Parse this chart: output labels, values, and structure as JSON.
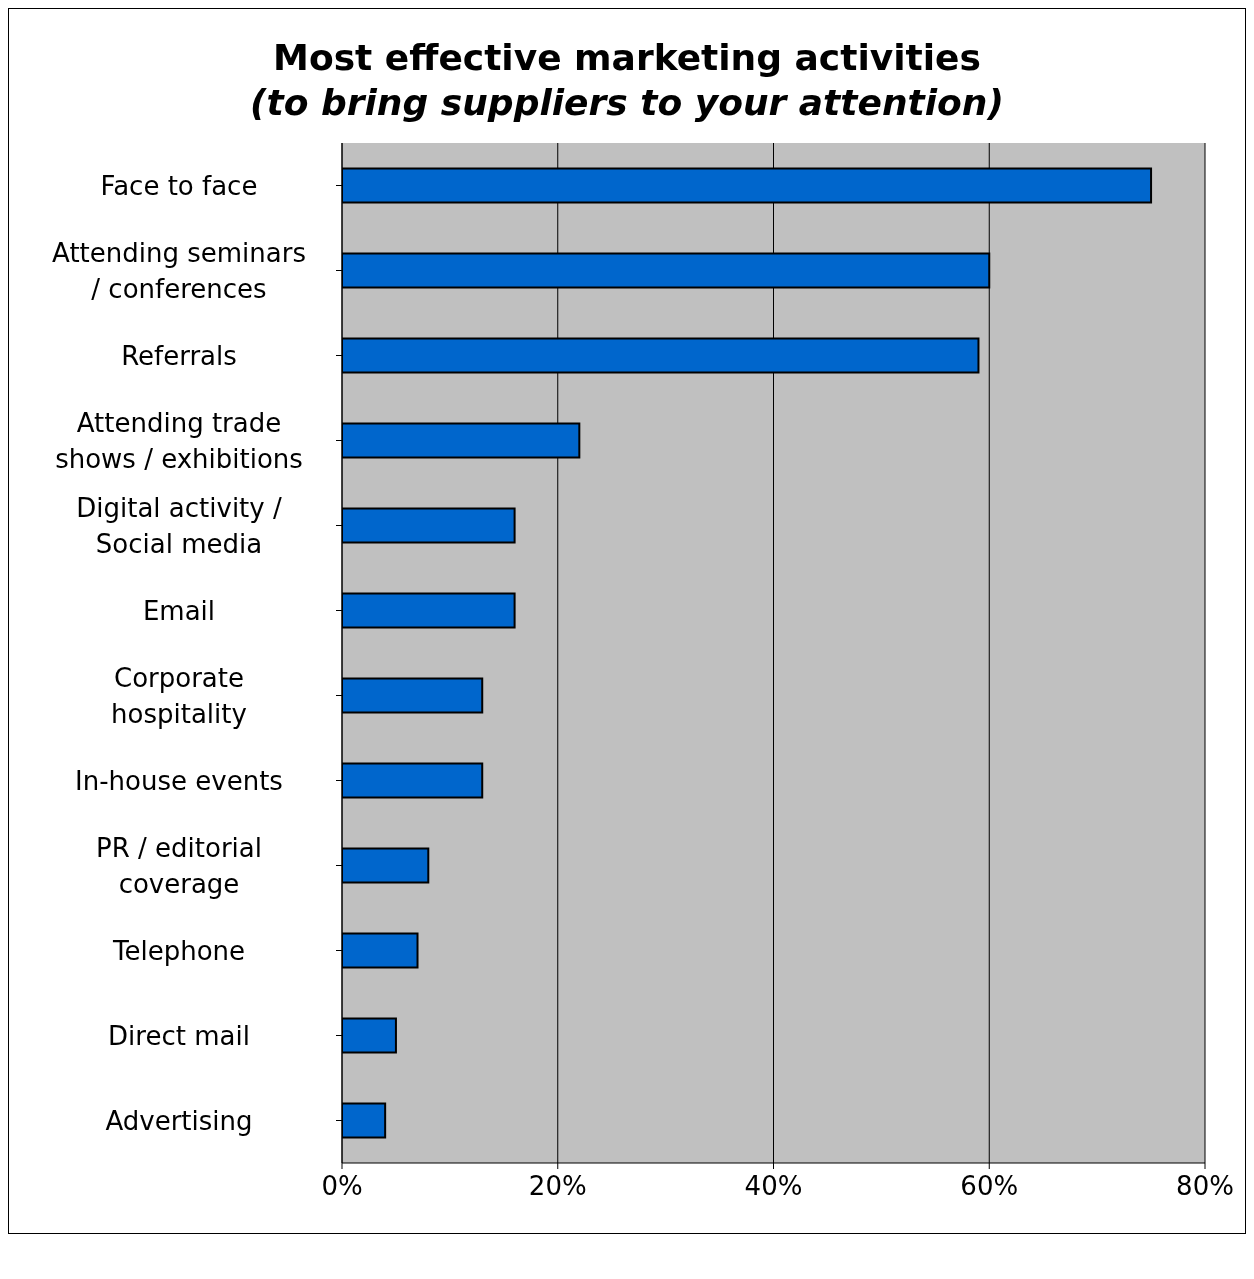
{
  "chart_data": {
    "type": "bar",
    "orientation": "horizontal",
    "title": "Most effective marketing activities",
    "subtitle": "(to bring suppliers to your attention)",
    "categories": [
      "Face to face",
      "Attending seminars / conferences",
      "Referrals",
      "Attending trade shows / exhibitions",
      "Digital activity / Social media",
      "Email",
      "Corporate hospitality",
      "In-house events",
      "PR / editorial coverage",
      "Telephone",
      "Direct mail",
      "Advertising"
    ],
    "values": [
      75,
      60,
      59,
      22,
      16,
      16,
      13,
      13,
      8,
      7,
      5,
      4
    ],
    "color": "#0066cc",
    "xlim": [
      0,
      80
    ],
    "xticks": [
      {
        "value": 0,
        "label": "0%"
      },
      {
        "value": 20,
        "label": "20%"
      },
      {
        "value": 40,
        "label": "40%"
      },
      {
        "value": 60,
        "label": "60%"
      },
      {
        "value": 80,
        "label": "80%"
      }
    ],
    "grid": "x",
    "legend": false
  }
}
